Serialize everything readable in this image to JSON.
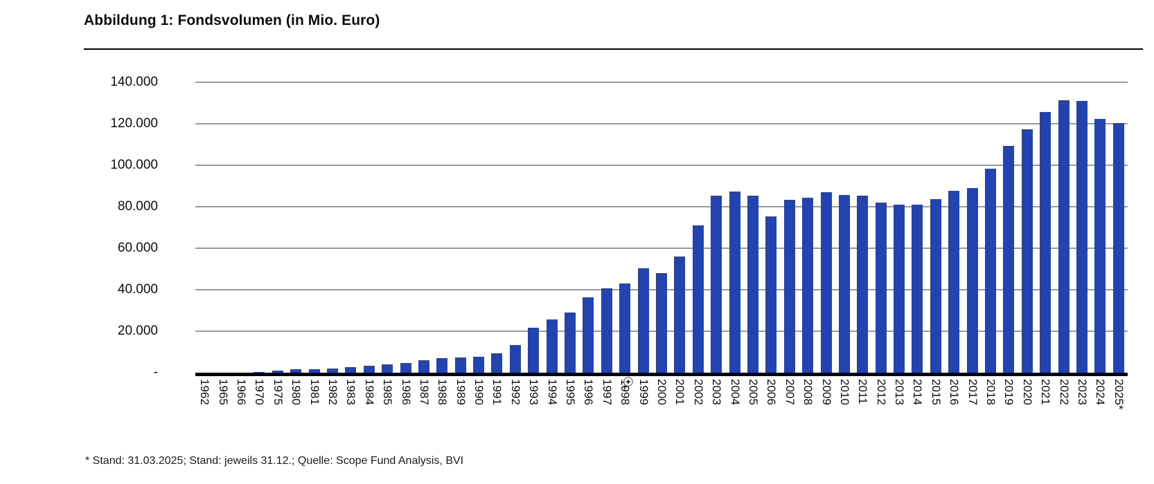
{
  "figure": {
    "title": "Abbildung 1: Fondsvolumen (in Mio. Euro)",
    "footnote": "* Stand: 31.03.2025; Stand: jeweils 31.12.; Quelle: Scope Fund Analysis, BVI"
  },
  "colors": {
    "bar": "#2343b0",
    "gridline": "#9a9a9a",
    "axis": "#000000",
    "text": "#0d0d0d"
  },
  "icons": {
    "cursor": "zoom-in-magnifier-cursor"
  },
  "chart_data": {
    "type": "bar",
    "title": "Abbildung 1: Fondsvolumen (in Mio. Euro)",
    "unit": "Mio. Euro",
    "xlabel": "",
    "ylabel": "",
    "ylim": [
      0,
      140000
    ],
    "ytick_interval": 20000,
    "ytick_labels": [
      "-",
      "20.000",
      "40.000",
      "60.000",
      "80.000",
      "100.000",
      "120.000",
      "140.000"
    ],
    "grid": true,
    "legend": "none",
    "bar_color": "#2343b0",
    "categories": [
      "1962",
      "1965",
      "1966",
      "1970",
      "1975",
      "1980",
      "1981",
      "1982",
      "1983",
      "1984",
      "1985",
      "1986",
      "1987",
      "1988",
      "1989",
      "1990",
      "1991",
      "1992",
      "1993",
      "1994",
      "1995",
      "1996",
      "1997",
      "1998",
      "1999",
      "2000",
      "2001",
      "2002",
      "2003",
      "2004",
      "2005",
      "2006",
      "2007",
      "2008",
      "2009",
      "2010",
      "2011",
      "2012",
      "2013",
      "2014",
      "2015",
      "2016",
      "2017",
      "2018",
      "2019",
      "2020",
      "2021",
      "2022",
      "2023",
      "2024",
      "2025*"
    ],
    "values": [
      40,
      100,
      150,
      400,
      1100,
      1550,
      1800,
      2100,
      2750,
      3250,
      3900,
      4750,
      6000,
      6900,
      7250,
      7700,
      9300,
      13200,
      21600,
      25600,
      29000,
      36400,
      40800,
      43000,
      50400,
      47900,
      55900,
      71000,
      85400,
      87400,
      85200,
      75500,
      83400,
      84300,
      87100,
      85700,
      85400,
      82100,
      81000,
      81100,
      83600,
      87800,
      89100,
      98300,
      109300,
      117500,
      125600,
      131300,
      130900,
      122500,
      120300
    ]
  }
}
